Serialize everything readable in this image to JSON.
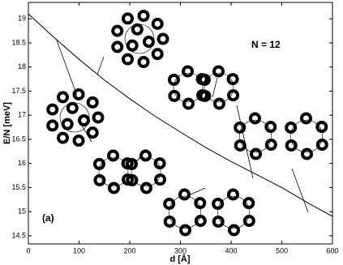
{
  "chart_data": {
    "type": "line",
    "x": [
      0,
      50,
      100,
      150,
      200,
      250,
      300,
      350,
      400,
      450,
      500,
      550,
      600
    ],
    "series": [
      {
        "color": "#000000",
        "values": [
          19.1,
          18.62,
          18.16,
          17.73,
          17.34,
          16.98,
          16.65,
          16.33,
          16.04,
          15.77,
          15.5,
          15.19,
          14.9
        ]
      }
    ],
    "xlim": [
      0,
      600
    ],
    "ylim": [
      14.33,
      19.34
    ],
    "xticks": [
      0,
      100,
      200,
      300,
      400,
      500,
      600
    ],
    "yticks": [
      14.5,
      15,
      15.5,
      16,
      16.5,
      17,
      17.5,
      18,
      18.5,
      19
    ],
    "xlabel": "d [Å]",
    "ylabel": "E/N [meV]",
    "annotations": [
      "N = 12",
      "(a)"
    ]
  }
}
